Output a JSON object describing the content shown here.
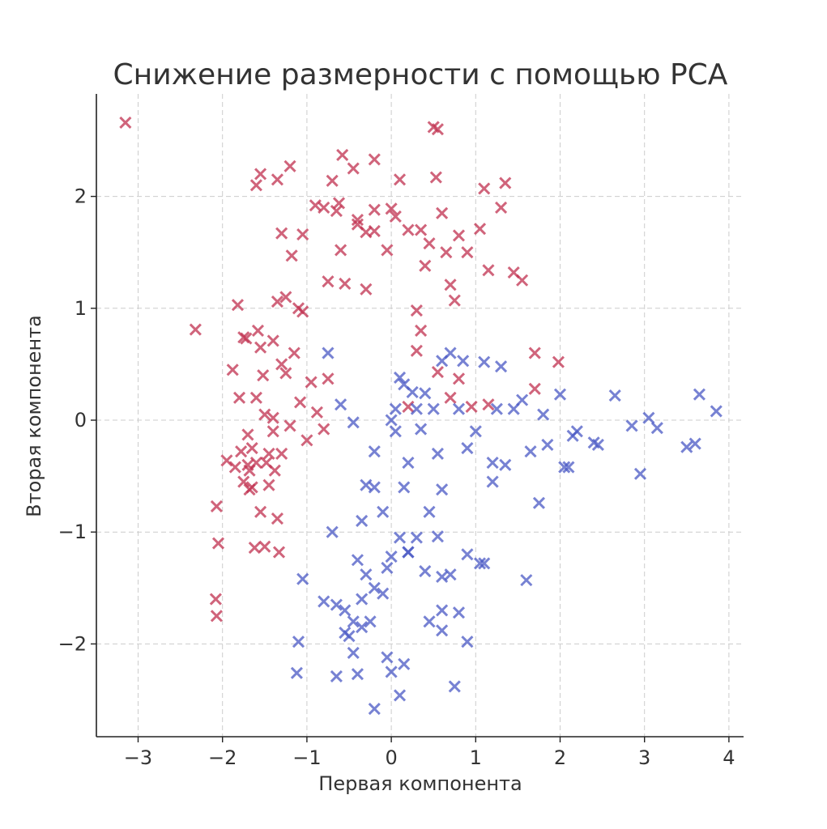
{
  "chart_data": {
    "type": "scatter",
    "title": "Снижение размерности с помощью PCA",
    "xlabel": "Первая компонента",
    "ylabel": "Вторая компонента",
    "xlim": [
      -3.5,
      4.2
    ],
    "ylim": [
      -2.8,
      2.9
    ],
    "grid": true,
    "marker": "x",
    "xticks": [
      -3,
      -2,
      -1,
      0,
      1,
      2,
      3,
      4
    ],
    "yticks": [
      -2,
      -1,
      0,
      1,
      2
    ],
    "xtick_labels": [
      "−3",
      "−2",
      "−1",
      "0",
      "1",
      "2",
      "3",
      "4"
    ],
    "ytick_labels": [
      "−2",
      "−1",
      "0",
      "1",
      "2"
    ],
    "series": [
      {
        "color": "#c0304f",
        "points": [
          [
            -3.15,
            2.66
          ],
          [
            -2.32,
            0.81
          ],
          [
            -2.07,
            -0.77
          ],
          [
            -2.05,
            -1.1
          ],
          [
            -2.08,
            -1.6
          ],
          [
            -2.07,
            -1.75
          ],
          [
            -1.95,
            -0.36
          ],
          [
            -1.88,
            0.45
          ],
          [
            -1.82,
            1.03
          ],
          [
            -1.8,
            0.2
          ],
          [
            -1.75,
            0.74
          ],
          [
            -1.72,
            0.73
          ],
          [
            -1.7,
            -0.13
          ],
          [
            -1.68,
            -0.45
          ],
          [
            -1.65,
            -0.6
          ],
          [
            -1.6,
            -0.38
          ],
          [
            -1.58,
            0.8
          ],
          [
            -1.55,
            0.65
          ],
          [
            -1.52,
            0.4
          ],
          [
            -1.5,
            0.05
          ],
          [
            -1.45,
            -0.3
          ],
          [
            -1.4,
            0.02
          ],
          [
            -1.38,
            -0.45
          ],
          [
            -1.35,
            -0.88
          ],
          [
            -1.33,
            -1.18
          ],
          [
            -1.3,
            0.5
          ],
          [
            -1.25,
            0.42
          ],
          [
            -1.2,
            -0.05
          ],
          [
            -1.15,
            0.6
          ],
          [
            -1.1,
            1.0
          ],
          [
            -1.08,
            0.16
          ],
          [
            -1.0,
            -0.18
          ],
          [
            -0.95,
            0.34
          ],
          [
            -0.88,
            0.07
          ],
          [
            -0.8,
            -0.08
          ],
          [
            -0.75,
            0.37
          ],
          [
            -1.6,
            2.1
          ],
          [
            -1.55,
            2.2
          ],
          [
            -1.35,
            2.15
          ],
          [
            -1.2,
            2.27
          ],
          [
            -1.3,
            1.67
          ],
          [
            -1.18,
            1.47
          ],
          [
            -1.05,
            1.66
          ],
          [
            -1.35,
            1.06
          ],
          [
            -1.25,
            1.1
          ],
          [
            -0.9,
            1.92
          ],
          [
            -0.8,
            1.9
          ],
          [
            -0.75,
            1.24
          ],
          [
            -0.7,
            2.14
          ],
          [
            -0.65,
            1.87
          ],
          [
            -0.58,
            2.37
          ],
          [
            -0.45,
            2.25
          ],
          [
            -0.4,
            1.79
          ],
          [
            -0.3,
            1.68
          ],
          [
            -0.2,
            1.69
          ],
          [
            -0.2,
            2.33
          ],
          [
            -0.05,
            1.52
          ],
          [
            0.0,
            1.89
          ],
          [
            0.1,
            2.15
          ],
          [
            0.2,
            1.7
          ],
          [
            -0.55,
            1.22
          ],
          [
            -0.6,
            1.52
          ],
          [
            -0.3,
            1.17
          ],
          [
            0.3,
            0.98
          ],
          [
            0.35,
            1.7
          ],
          [
            0.4,
            1.38
          ],
          [
            0.45,
            1.58
          ],
          [
            0.5,
            2.62
          ],
          [
            0.53,
            2.17
          ],
          [
            0.55,
            2.6
          ],
          [
            0.6,
            1.85
          ],
          [
            0.65,
            1.5
          ],
          [
            0.7,
            1.21
          ],
          [
            0.75,
            1.07
          ],
          [
            0.8,
            1.65
          ],
          [
            0.9,
            1.5
          ],
          [
            1.05,
            1.71
          ],
          [
            1.1,
            2.07
          ],
          [
            1.15,
            1.34
          ],
          [
            1.3,
            1.9
          ],
          [
            1.35,
            2.12
          ],
          [
            1.45,
            1.32
          ],
          [
            1.55,
            1.25
          ],
          [
            1.7,
            0.6
          ],
          [
            1.7,
            0.28
          ],
          [
            1.98,
            0.52
          ],
          [
            0.7,
            0.2
          ],
          [
            0.8,
            0.37
          ],
          [
            0.3,
            0.62
          ],
          [
            0.55,
            0.43
          ],
          [
            0.95,
            0.12
          ],
          [
            1.15,
            0.14
          ],
          [
            0.2,
            0.12
          ],
          [
            0.35,
            0.8
          ],
          [
            -0.2,
            1.88
          ],
          [
            0.05,
            1.82
          ],
          [
            -0.4,
            1.75
          ],
          [
            -0.62,
            1.94
          ],
          [
            -1.05,
            0.97
          ],
          [
            -1.4,
            0.71
          ],
          [
            -1.6,
            0.2
          ],
          [
            -1.7,
            -0.4
          ],
          [
            -1.85,
            -0.42
          ],
          [
            -1.75,
            -0.55
          ],
          [
            -1.68,
            -0.62
          ],
          [
            -1.55,
            -0.82
          ],
          [
            -1.5,
            -1.13
          ],
          [
            -1.62,
            -1.14
          ],
          [
            -1.45,
            -0.58
          ],
          [
            -1.4,
            -0.1
          ],
          [
            -1.3,
            -0.3
          ],
          [
            -1.48,
            -0.38
          ],
          [
            -1.78,
            -0.28
          ],
          [
            -1.65,
            -0.25
          ]
        ]
      },
      {
        "color": "#4a58c4",
        "points": [
          [
            -0.75,
            0.6
          ],
          [
            -0.6,
            0.14
          ],
          [
            -0.45,
            -0.02
          ],
          [
            -0.2,
            -0.28
          ],
          [
            0.0,
            0.0
          ],
          [
            0.05,
            0.1
          ],
          [
            0.1,
            0.38
          ],
          [
            0.15,
            0.32
          ],
          [
            0.25,
            0.25
          ],
          [
            0.3,
            0.1
          ],
          [
            0.4,
            0.24
          ],
          [
            0.5,
            0.1
          ],
          [
            0.6,
            0.53
          ],
          [
            0.7,
            0.6
          ],
          [
            0.85,
            0.53
          ],
          [
            1.1,
            0.52
          ],
          [
            1.3,
            0.48
          ],
          [
            1.55,
            0.18
          ],
          [
            1.8,
            0.05
          ],
          [
            2.0,
            0.23
          ],
          [
            2.2,
            -0.1
          ],
          [
            2.4,
            -0.2
          ],
          [
            2.65,
            0.22
          ],
          [
            2.95,
            -0.48
          ],
          [
            3.05,
            0.02
          ],
          [
            3.15,
            -0.07
          ],
          [
            3.5,
            -0.24
          ],
          [
            3.6,
            -0.21
          ],
          [
            3.65,
            0.23
          ],
          [
            3.85,
            0.08
          ],
          [
            2.1,
            -0.42
          ],
          [
            1.75,
            -0.74
          ],
          [
            1.2,
            -0.55
          ],
          [
            0.9,
            -0.25
          ],
          [
            0.6,
            -0.62
          ],
          [
            0.55,
            -0.3
          ],
          [
            0.2,
            -0.38
          ],
          [
            0.05,
            -0.1
          ],
          [
            -0.3,
            -0.58
          ],
          [
            -0.1,
            -0.82
          ],
          [
            -0.7,
            -1.0
          ],
          [
            -1.05,
            -1.42
          ],
          [
            -0.4,
            -1.25
          ],
          [
            -0.3,
            -1.38
          ],
          [
            -0.2,
            -1.5
          ],
          [
            -0.05,
            -1.32
          ],
          [
            0.0,
            -1.22
          ],
          [
            0.1,
            -1.05
          ],
          [
            0.2,
            -1.18
          ],
          [
            0.3,
            -1.05
          ],
          [
            0.45,
            -0.82
          ],
          [
            0.55,
            -1.04
          ],
          [
            0.6,
            -1.4
          ],
          [
            0.7,
            -1.38
          ],
          [
            0.9,
            -1.2
          ],
          [
            1.1,
            -1.28
          ],
          [
            1.6,
            -1.43
          ],
          [
            -0.8,
            -1.62
          ],
          [
            -0.65,
            -1.65
          ],
          [
            -0.55,
            -1.7
          ],
          [
            -0.45,
            -1.8
          ],
          [
            -0.35,
            -1.85
          ],
          [
            -0.25,
            -1.8
          ],
          [
            -0.55,
            -1.9
          ],
          [
            -0.45,
            -2.08
          ],
          [
            -0.5,
            -1.93
          ],
          [
            0.45,
            -1.8
          ],
          [
            0.6,
            -1.88
          ],
          [
            0.8,
            -1.72
          ],
          [
            0.9,
            -1.98
          ],
          [
            -1.1,
            -1.98
          ],
          [
            -1.12,
            -2.26
          ],
          [
            -0.65,
            -2.29
          ],
          [
            -0.4,
            -2.27
          ],
          [
            -0.05,
            -2.12
          ],
          [
            0.0,
            -2.25
          ],
          [
            0.1,
            -2.46
          ],
          [
            0.15,
            -2.18
          ],
          [
            -0.2,
            -2.58
          ],
          [
            0.75,
            -2.38
          ],
          [
            1.05,
            -1.28
          ],
          [
            1.2,
            -0.38
          ],
          [
            1.45,
            0.1
          ],
          [
            1.65,
            -0.28
          ],
          [
            1.85,
            -0.22
          ],
          [
            2.05,
            -0.42
          ],
          [
            2.45,
            -0.22
          ],
          [
            2.85,
            -0.05
          ],
          [
            1.25,
            0.1
          ],
          [
            1.0,
            -0.1
          ],
          [
            0.8,
            0.1
          ],
          [
            0.35,
            -0.08
          ],
          [
            -0.2,
            -0.6
          ],
          [
            -0.35,
            -0.9
          ],
          [
            0.15,
            -0.6
          ],
          [
            0.4,
            -1.35
          ],
          [
            0.6,
            -1.7
          ],
          [
            -0.1,
            -1.55
          ],
          [
            -0.35,
            -1.6
          ],
          [
            0.2,
            -1.18
          ],
          [
            1.35,
            -0.4
          ],
          [
            2.15,
            -0.14
          ]
        ]
      }
    ]
  }
}
